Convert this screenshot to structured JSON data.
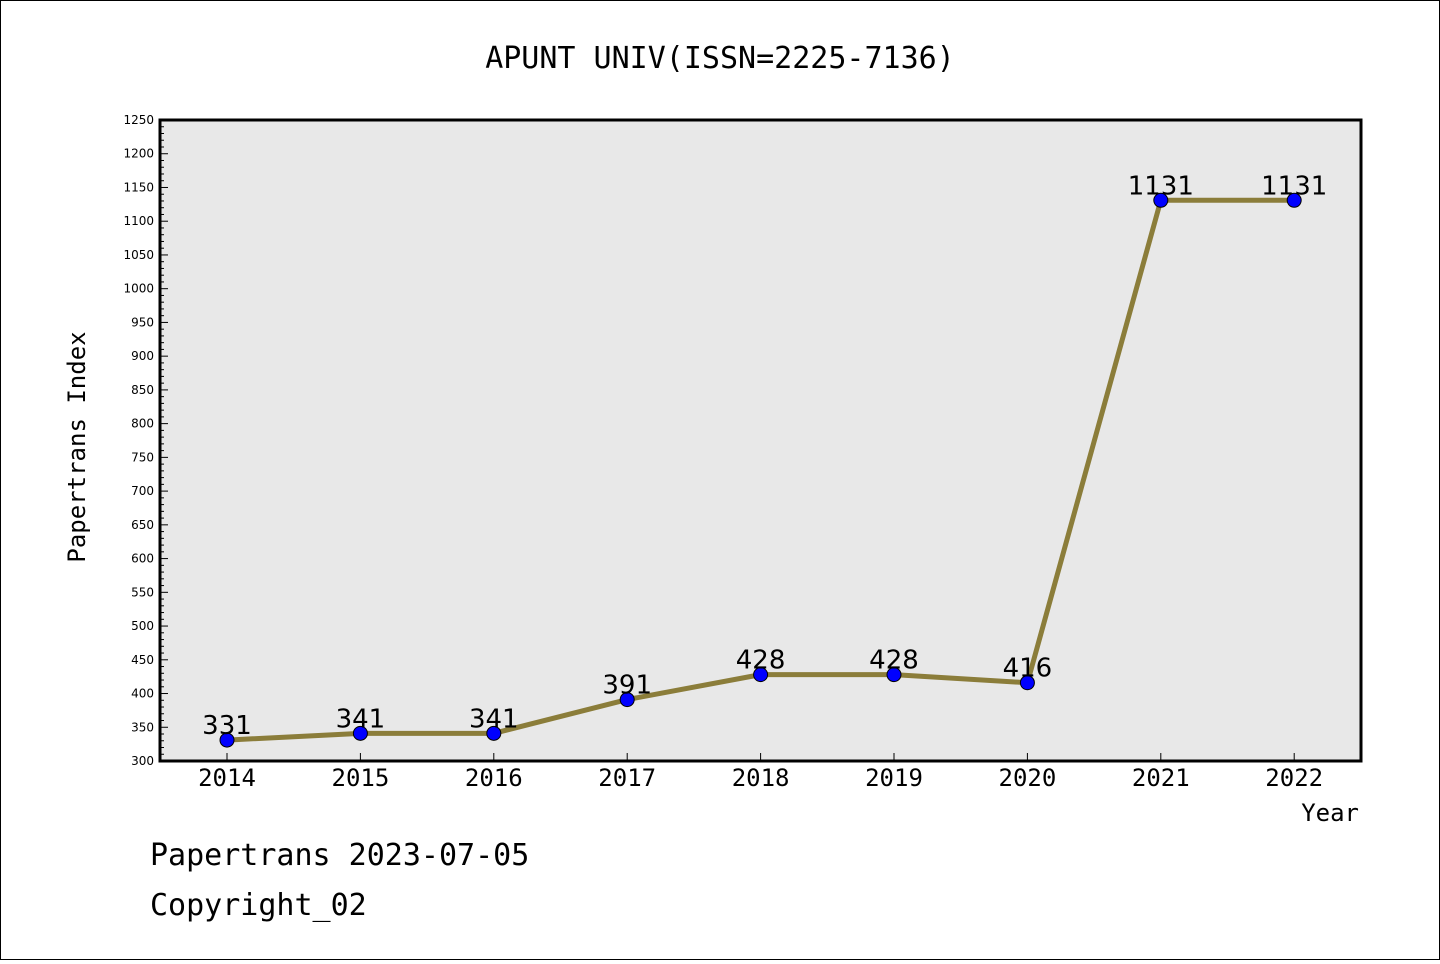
{
  "chart_data": {
    "type": "line",
    "title": "APUNT UNIV(ISSN=2225-7136)",
    "xlabel": "Year",
    "ylabel": "Papertrans Index",
    "x": [
      "2014",
      "2015",
      "2016",
      "2017",
      "2018",
      "2019",
      "2020",
      "2021",
      "2022"
    ],
    "series": [
      {
        "values": [
          331,
          341,
          341,
          391,
          428,
          428,
          416,
          1131,
          1131
        ]
      }
    ],
    "ylim": [
      300,
      1250
    ],
    "y_tick_step": 50,
    "grid": false,
    "data_labels": true,
    "line_color": "#8b7d3a",
    "marker_color": "#0000ff",
    "plot_background": "#e8e8e8"
  },
  "footer": {
    "line1": "Papertrans 2023-07-05",
    "line2": "Copyright_02"
  }
}
